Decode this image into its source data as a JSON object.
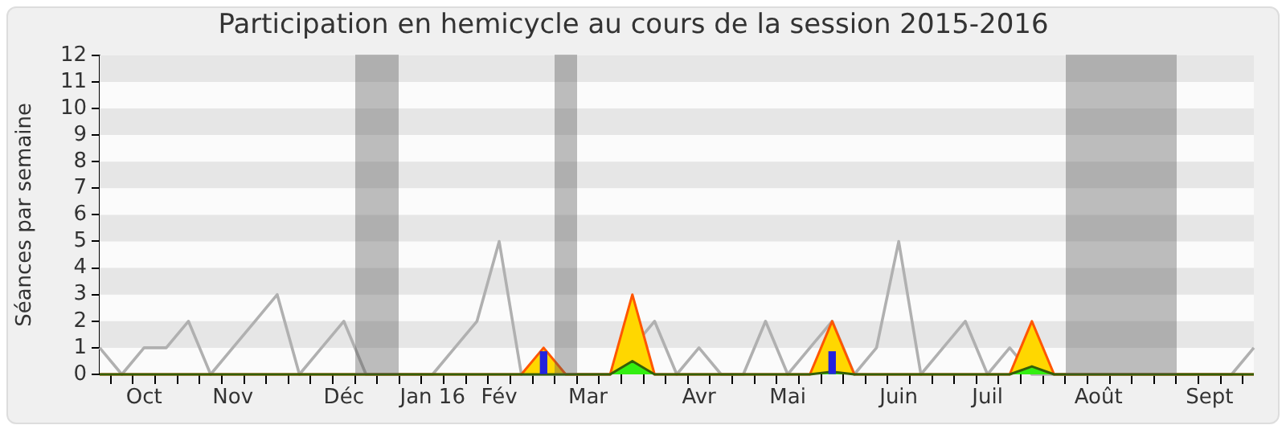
{
  "chart_data": {
    "type": "line",
    "title": "Participation en hemicycle au cours de la session 2015-2016",
    "ylabel": "Séances par semaine",
    "categories": [
      null,
      null,
      "Oct",
      null,
      null,
      null,
      "Nov",
      null,
      null,
      null,
      null,
      "Déc",
      null,
      null,
      null,
      "Jan 16",
      null,
      null,
      "Fév",
      null,
      null,
      null,
      "Mar",
      null,
      null,
      null,
      null,
      "Avr",
      null,
      null,
      null,
      "Mai",
      null,
      null,
      null,
      null,
      "Juin",
      null,
      null,
      null,
      "Juil",
      null,
      null,
      null,
      null,
      "Août",
      null,
      null,
      null,
      null,
      "Sept",
      null,
      null
    ],
    "series": [
      {
        "color": "#b0b0b0",
        "values": [
          1,
          0,
          1,
          1,
          2,
          0,
          1,
          2,
          3,
          0,
          1,
          2,
          0,
          0,
          0,
          0,
          1,
          2,
          5,
          0,
          0,
          0,
          0,
          0,
          null,
          2,
          0,
          1,
          0,
          0,
          2,
          0,
          1,
          2,
          0,
          1,
          5,
          0,
          1,
          2,
          0,
          1,
          0,
          0,
          0,
          0,
          0,
          0,
          0,
          0,
          0,
          0,
          1
        ]
      },
      {
        "type": "area",
        "color": "#ffd700",
        "values": [
          0,
          0,
          0,
          0,
          0,
          0,
          0,
          0,
          0,
          0,
          0,
          0,
          0,
          0,
          0,
          0,
          0,
          0,
          0,
          0,
          1,
          0,
          0,
          0,
          3,
          0,
          0,
          0,
          0,
          0,
          0,
          0,
          0,
          2,
          0,
          0,
          0,
          0,
          0,
          0,
          0,
          0,
          2,
          0,
          0,
          0,
          0,
          0,
          0,
          0,
          0,
          0,
          0
        ]
      },
      {
        "type": "area",
        "color": "#33ee11",
        "values": [
          0,
          0,
          0,
          0,
          0,
          0,
          0,
          0,
          0,
          0,
          0,
          0,
          0,
          0,
          0,
          0,
          0,
          0,
          0,
          0,
          0,
          0,
          0,
          0,
          0.5,
          0,
          0,
          0,
          0,
          0,
          0,
          0,
          0,
          0.1,
          0,
          0,
          0,
          0,
          0,
          0,
          0,
          0,
          0.3,
          0,
          0,
          0,
          0,
          0,
          0,
          0,
          0,
          0,
          0
        ]
      },
      {
        "type": "bar",
        "color": "#2222dd",
        "values": [
          null,
          null,
          null,
          null,
          null,
          null,
          null,
          null,
          null,
          null,
          null,
          null,
          null,
          null,
          null,
          null,
          null,
          null,
          null,
          null,
          0.85,
          null,
          null,
          null,
          null,
          null,
          null,
          null,
          null,
          null,
          null,
          null,
          null,
          0.85,
          null,
          null,
          null,
          null,
          null,
          null,
          null,
          null,
          null,
          null,
          null,
          null,
          null,
          null,
          null,
          null,
          null,
          null,
          null
        ]
      }
    ],
    "ylim": [
      0,
      12
    ],
    "yticks": [
      0,
      1,
      2,
      3,
      4,
      5,
      6,
      7,
      8,
      9,
      10,
      11,
      12
    ],
    "bands": [
      {
        "axis": "y",
        "from": 1,
        "to": 2,
        "color": "#e6e6e6"
      },
      {
        "axis": "y",
        "from": 3,
        "to": 4,
        "color": "#e6e6e6"
      },
      {
        "axis": "y",
        "from": 5,
        "to": 6,
        "color": "#e6e6e6"
      },
      {
        "axis": "y",
        "from": 7,
        "to": 8,
        "color": "#e6e6e6"
      },
      {
        "axis": "y",
        "from": 9,
        "to": 10,
        "color": "#e6e6e6"
      },
      {
        "axis": "y",
        "from": 11,
        "to": 12,
        "color": "#e6e6e6"
      }
    ],
    "marker": "none",
    "legend": false
  }
}
